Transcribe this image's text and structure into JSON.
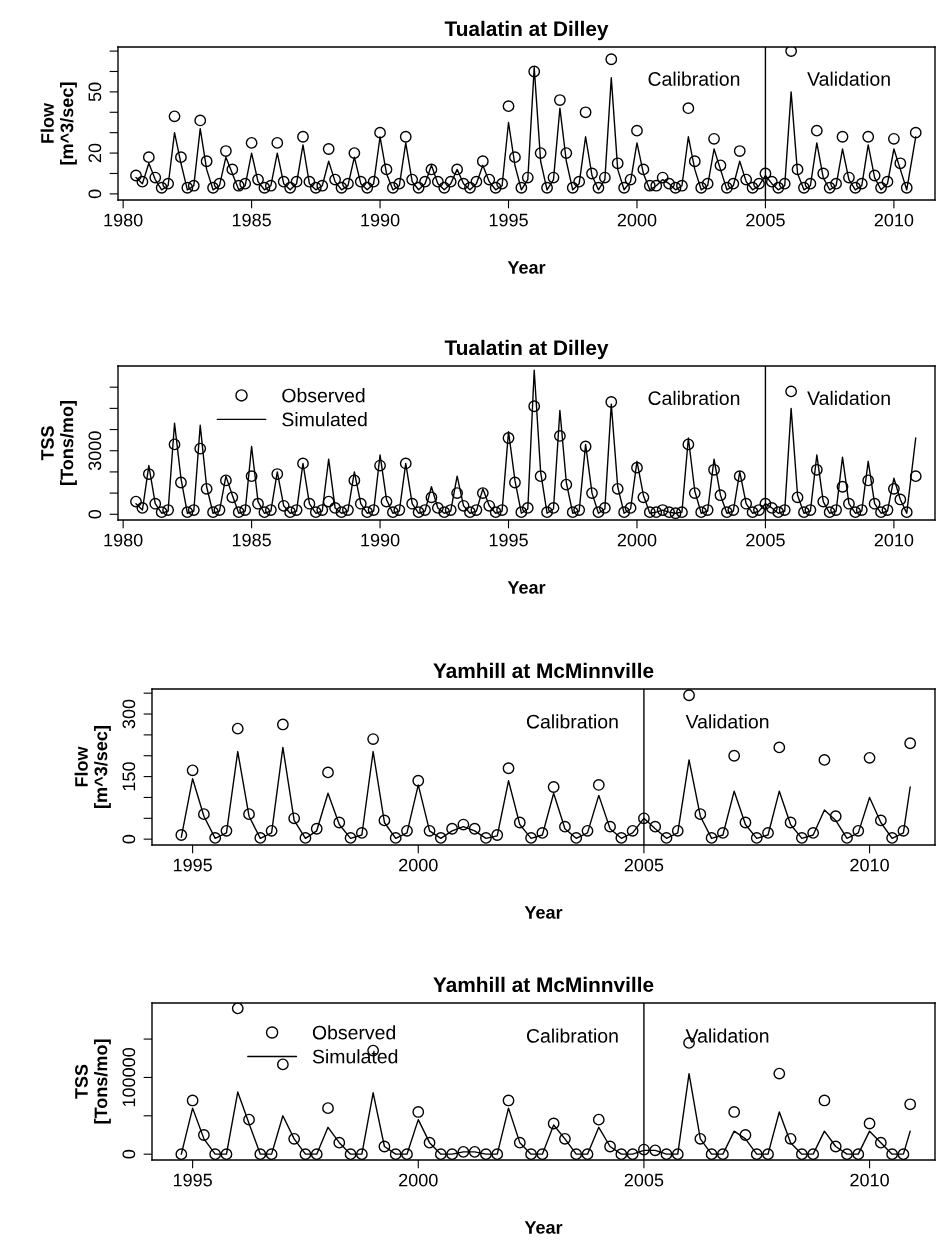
{
  "chart_data": [
    {
      "type": "line",
      "title": "Tualatin at Dilley",
      "xlabel": "Year",
      "ylabel": "Flow\n[m^3/sec]",
      "x": [
        1980.5,
        1980.75,
        1981,
        1981.25,
        1981.5,
        1981.75,
        1982,
        1982.25,
        1982.5,
        1982.75,
        1983,
        1983.25,
        1983.5,
        1983.75,
        1984,
        1984.25,
        1984.5,
        1984.75,
        1985,
        1985.25,
        1985.5,
        1985.75,
        1986,
        1986.25,
        1986.5,
        1986.75,
        1987,
        1987.25,
        1987.5,
        1987.75,
        1988,
        1988.25,
        1988.5,
        1988.75,
        1989,
        1989.25,
        1989.5,
        1989.75,
        1990,
        1990.25,
        1990.5,
        1990.75,
        1991,
        1991.25,
        1991.5,
        1991.75,
        1992,
        1992.25,
        1992.5,
        1992.75,
        1993,
        1993.25,
        1993.5,
        1993.75,
        1994,
        1994.25,
        1994.5,
        1994.75,
        1995,
        1995.25,
        1995.5,
        1995.75,
        1996,
        1996.25,
        1996.5,
        1996.75,
        1997,
        1997.25,
        1997.5,
        1997.75,
        1998,
        1998.25,
        1998.5,
        1998.75,
        1999,
        1999.25,
        1999.5,
        1999.75,
        2000,
        2000.25,
        2000.5,
        2000.75,
        2001,
        2001.25,
        2001.5,
        2001.75,
        2002,
        2002.25,
        2002.5,
        2002.75,
        2003,
        2003.25,
        2003.5,
        2003.75,
        2004,
        2004.25,
        2004.5,
        2004.75,
        2005,
        2005.25,
        2005.5,
        2005.75,
        2006,
        2006.25,
        2006.5,
        2006.75,
        2007,
        2007.25,
        2007.5,
        2007.75,
        2008,
        2008.25,
        2008.5,
        2008.75,
        2009,
        2009.25,
        2009.5,
        2009.75,
        2010,
        2010.25,
        2010.5,
        2010.85
      ],
      "series": [
        {
          "type": "scatter",
          "marker": "circle",
          "color": "#000000",
          "values": [
            9,
            6,
            18,
            8,
            3,
            5,
            38,
            18,
            3,
            4,
            36,
            16,
            3,
            5,
            21,
            12,
            4,
            5,
            25,
            7,
            3,
            4,
            25,
            6,
            3,
            6,
            28,
            6,
            3,
            4,
            22,
            7,
            3,
            5,
            20,
            6,
            3,
            6,
            30,
            12,
            3,
            5,
            28,
            7,
            3,
            6,
            12,
            6,
            3,
            6,
            12,
            5,
            3,
            6,
            16,
            7,
            3,
            5,
            43,
            18,
            3,
            8,
            60,
            20,
            3,
            8,
            46,
            20,
            3,
            6,
            40,
            10,
            3,
            8,
            66,
            15,
            3,
            7,
            31,
            12,
            4,
            4,
            8,
            5,
            3,
            4,
            42,
            16,
            3,
            5,
            27,
            14,
            3,
            5,
            21,
            7,
            3,
            5,
            10,
            6,
            3,
            5,
            70,
            12,
            3,
            5,
            31,
            10,
            3,
            5,
            28,
            8,
            3,
            5,
            28,
            9,
            3,
            6,
            27,
            15,
            3,
            30
          ]
        },
        {
          "type": "line",
          "line_style": "solid",
          "color": "#000000",
          "values": [
            8,
            5,
            15,
            7,
            2,
            4,
            30,
            15,
            2,
            4,
            32,
            12,
            2,
            4,
            18,
            10,
            2,
            4,
            20,
            6,
            2,
            4,
            20,
            5,
            2,
            5,
            24,
            5,
            2,
            4,
            16,
            6,
            2,
            4,
            18,
            5,
            2,
            5,
            28,
            10,
            2,
            4,
            25,
            6,
            2,
            5,
            14,
            5,
            2,
            5,
            12,
            5,
            2,
            5,
            14,
            6,
            2,
            4,
            35,
            14,
            2,
            7,
            62,
            16,
            2,
            7,
            42,
            16,
            2,
            5,
            28,
            9,
            2,
            7,
            57,
            12,
            2,
            6,
            25,
            10,
            2,
            4,
            7,
            5,
            2,
            4,
            28,
            12,
            2,
            4,
            22,
            12,
            2,
            4,
            16,
            6,
            2,
            4,
            9,
            5,
            2,
            4,
            50,
            10,
            2,
            4,
            25,
            8,
            2,
            4,
            22,
            7,
            2,
            4,
            24,
            8,
            2,
            5,
            22,
            12,
            2,
            28
          ]
        }
      ],
      "xlim": [
        1979.8,
        2011.6
      ],
      "xticks": [
        1980,
        1985,
        1990,
        1995,
        2000,
        2005,
        2010
      ],
      "ylim": [
        -3,
        72
      ],
      "yticks": [
        0,
        {
          "value": 10,
          "label": null
        },
        20,
        {
          "value": 30,
          "label": null
        },
        {
          "value": 40,
          "label": null
        },
        50,
        {
          "value": 60,
          "label": null
        },
        {
          "value": 70,
          "label": null
        }
      ],
      "ref_lines": [
        {
          "axis": "x",
          "value": 2005,
          "color": "#000000"
        }
      ],
      "annotations": [
        "Calibration",
        "Validation"
      ],
      "grid": false,
      "legend": false
    },
    {
      "type": "line",
      "title": "Tualatin at Dilley",
      "xlabel": "Year",
      "ylabel": "TSS\n[Tons/mo]",
      "x": [
        1980.5,
        1980.75,
        1981,
        1981.25,
        1981.5,
        1981.75,
        1982,
        1982.25,
        1982.5,
        1982.75,
        1983,
        1983.25,
        1983.5,
        1983.75,
        1984,
        1984.25,
        1984.5,
        1984.75,
        1985,
        1985.25,
        1985.5,
        1985.75,
        1986,
        1986.25,
        1986.5,
        1986.75,
        1987,
        1987.25,
        1987.5,
        1987.75,
        1988,
        1988.25,
        1988.5,
        1988.75,
        1989,
        1989.25,
        1989.5,
        1989.75,
        1990,
        1990.25,
        1990.5,
        1990.75,
        1991,
        1991.25,
        1991.5,
        1991.75,
        1992,
        1992.25,
        1992.5,
        1992.75,
        1993,
        1993.25,
        1993.5,
        1993.75,
        1994,
        1994.25,
        1994.5,
        1994.75,
        1995,
        1995.25,
        1995.5,
        1995.75,
        1996,
        1996.25,
        1996.5,
        1996.75,
        1997,
        1997.25,
        1997.5,
        1997.75,
        1998,
        1998.25,
        1998.5,
        1998.75,
        1999,
        1999.25,
        1999.5,
        1999.75,
        2000,
        2000.25,
        2000.5,
        2000.75,
        2001,
        2001.25,
        2001.5,
        2001.75,
        2002,
        2002.25,
        2002.5,
        2002.75,
        2003,
        2003.25,
        2003.5,
        2003.75,
        2004,
        2004.25,
        2004.5,
        2004.75,
        2005,
        2005.25,
        2005.5,
        2005.75,
        2006,
        2006.25,
        2006.5,
        2006.75,
        2007,
        2007.25,
        2007.5,
        2007.75,
        2008,
        2008.25,
        2008.5,
        2008.75,
        2009,
        2009.25,
        2009.5,
        2009.75,
        2010,
        2010.25,
        2010.5,
        2010.85
      ],
      "series": [
        {
          "name": "Observed",
          "type": "scatter",
          "marker": "circle",
          "color": "#000000",
          "values": [
            600,
            300,
            1900,
            500,
            100,
            200,
            3300,
            1500,
            100,
            200,
            3100,
            1200,
            100,
            200,
            1600,
            800,
            100,
            200,
            1800,
            500,
            100,
            200,
            1900,
            400,
            100,
            200,
            2400,
            500,
            100,
            200,
            600,
            300,
            100,
            200,
            1600,
            500,
            100,
            200,
            2300,
            600,
            100,
            200,
            2400,
            500,
            100,
            200,
            800,
            300,
            100,
            200,
            1000,
            400,
            100,
            200,
            1000,
            400,
            100,
            200,
            3600,
            1500,
            100,
            300,
            5100,
            1800,
            100,
            300,
            3700,
            1400,
            100,
            200,
            3200,
            1000,
            100,
            300,
            5300,
            1200,
            100,
            300,
            2200,
            800,
            100,
            100,
            200,
            100,
            50,
            100,
            3300,
            1000,
            100,
            200,
            2100,
            900,
            100,
            200,
            1800,
            500,
            100,
            200,
            500,
            300,
            100,
            200,
            5800,
            800,
            100,
            200,
            2100,
            600,
            100,
            200,
            1300,
            500,
            100,
            200,
            1600,
            500,
            100,
            200,
            1200,
            700,
            100,
            1800
          ]
        },
        {
          "name": "Simulated",
          "type": "line",
          "line_style": "solid",
          "color": "#000000",
          "values": [
            500,
            200,
            2300,
            500,
            50,
            150,
            4300,
            1700,
            50,
            150,
            4200,
            1300,
            50,
            150,
            1800,
            900,
            50,
            150,
            3200,
            600,
            50,
            150,
            2000,
            400,
            50,
            150,
            2400,
            500,
            50,
            150,
            2600,
            300,
            50,
            150,
            2000,
            500,
            50,
            150,
            2800,
            700,
            50,
            150,
            2400,
            500,
            50,
            150,
            1300,
            300,
            50,
            150,
            1800,
            400,
            50,
            150,
            1200,
            400,
            50,
            150,
            3900,
            1600,
            50,
            250,
            6800,
            2000,
            50,
            250,
            4900,
            1500,
            50,
            150,
            3300,
            1000,
            50,
            250,
            5200,
            1300,
            50,
            250,
            2500,
            900,
            50,
            100,
            200,
            100,
            50,
            100,
            3600,
            1100,
            50,
            150,
            2600,
            900,
            50,
            150,
            2000,
            500,
            50,
            150,
            500,
            300,
            50,
            150,
            5000,
            900,
            50,
            150,
            2800,
            600,
            50,
            150,
            2700,
            500,
            50,
            150,
            2500,
            500,
            50,
            150,
            1700,
            700,
            50,
            3600
          ]
        }
      ],
      "xlim": [
        1979.8,
        2011.6
      ],
      "xticks": [
        1980,
        1985,
        1990,
        1995,
        2000,
        2005,
        2010
      ],
      "ylim": [
        -270,
        7000
      ],
      "yticks": [
        0,
        {
          "value": 1000,
          "label": null
        },
        {
          "value": 2000,
          "label": null
        },
        3000,
        {
          "value": 4000,
          "label": null
        },
        {
          "value": 5000,
          "label": null
        },
        {
          "value": 6000,
          "label": null
        }
      ],
      "ref_lines": [
        {
          "axis": "x",
          "value": 2005,
          "color": "#000000"
        }
      ],
      "annotations": [
        "Calibration",
        "Validation"
      ],
      "grid": false,
      "legend": "top left"
    },
    {
      "type": "line",
      "title": "Yamhill at McMinnville",
      "xlabel": "Year",
      "ylabel": "Flow\n[m^3/sec]",
      "x": [
        1994.75,
        1995,
        1995.25,
        1995.5,
        1995.75,
        1996,
        1996.25,
        1996.5,
        1996.75,
        1997,
        1997.25,
        1997.5,
        1997.75,
        1998,
        1998.25,
        1998.5,
        1998.75,
        1999,
        1999.25,
        1999.5,
        1999.75,
        2000,
        2000.25,
        2000.5,
        2000.75,
        2001,
        2001.25,
        2001.5,
        2001.75,
        2002,
        2002.25,
        2002.5,
        2002.75,
        2003,
        2003.25,
        2003.5,
        2003.75,
        2004,
        2004.25,
        2004.5,
        2004.75,
        2005,
        2005.25,
        2005.5,
        2005.75,
        2006,
        2006.25,
        2006.5,
        2006.75,
        2007,
        2007.25,
        2007.5,
        2007.75,
        2008,
        2008.25,
        2008.5,
        2008.75,
        2009,
        2009.25,
        2009.5,
        2009.75,
        2010,
        2010.25,
        2010.5,
        2010.75,
        2010.9
      ],
      "series": [
        {
          "type": "scatter",
          "marker": "circle",
          "color": "#000000",
          "values": [
            10,
            165,
            60,
            3,
            20,
            265,
            60,
            3,
            20,
            275,
            50,
            3,
            25,
            160,
            40,
            3,
            15,
            240,
            45,
            3,
            20,
            140,
            20,
            3,
            25,
            35,
            25,
            3,
            10,
            170,
            40,
            3,
            15,
            125,
            30,
            3,
            20,
            130,
            30,
            3,
            20,
            50,
            30,
            3,
            20,
            345,
            60,
            3,
            15,
            200,
            40,
            3,
            15,
            220,
            40,
            3,
            15,
            190,
            55,
            3,
            20,
            195,
            45,
            3,
            20,
            230
          ]
        },
        {
          "type": "line",
          "line_style": "solid",
          "color": "#000000",
          "values": [
            5,
            145,
            55,
            2,
            15,
            210,
            55,
            2,
            15,
            220,
            45,
            2,
            20,
            110,
            35,
            2,
            10,
            210,
            40,
            2,
            15,
            130,
            20,
            2,
            20,
            30,
            20,
            2,
            8,
            140,
            35,
            2,
            10,
            110,
            25,
            2,
            15,
            105,
            25,
            2,
            15,
            50,
            25,
            2,
            15,
            190,
            55,
            2,
            10,
            115,
            35,
            2,
            10,
            115,
            35,
            2,
            10,
            70,
            45,
            2,
            15,
            100,
            40,
            2,
            15,
            125
          ]
        }
      ],
      "xlim": [
        1994.1,
        2011.45
      ],
      "xticks": [
        1995,
        2000,
        2005,
        2010
      ],
      "ylim": [
        -14,
        360
      ],
      "yticks": [
        0,
        {
          "value": 50,
          "label": null
        },
        {
          "value": 100,
          "label": null
        },
        150,
        {
          "value": 200,
          "label": null
        },
        {
          "value": 250,
          "label": null
        },
        300,
        {
          "value": 350,
          "label": null
        }
      ],
      "ref_lines": [
        {
          "axis": "x",
          "value": 2005,
          "color": "#000000"
        }
      ],
      "annotations": [
        "Calibration",
        "Validation"
      ],
      "grid": false,
      "legend": false
    },
    {
      "type": "line",
      "title": "Yamhill at McMinnville",
      "xlabel": "Year",
      "ylabel": "TSS\n[Tons/mo]",
      "x": [
        1994.75,
        1995,
        1995.25,
        1995.5,
        1995.75,
        1996,
        1996.25,
        1996.5,
        1996.75,
        1997,
        1997.25,
        1997.5,
        1997.75,
        1998,
        1998.25,
        1998.5,
        1998.75,
        1999,
        1999.25,
        1999.5,
        1999.75,
        2000,
        2000.25,
        2000.5,
        2000.75,
        2001,
        2001.25,
        2001.5,
        2001.75,
        2002,
        2002.25,
        2002.5,
        2002.75,
        2003,
        2003.25,
        2003.5,
        2003.75,
        2004,
        2004.25,
        2004.5,
        2004.75,
        2005,
        2005.25,
        2005.5,
        2005.75,
        2006,
        2006.25,
        2006.5,
        2006.75,
        2007,
        2007.25,
        2007.5,
        2007.75,
        2008,
        2008.25,
        2008.5,
        2008.75,
        2009,
        2009.25,
        2009.5,
        2009.75,
        2010,
        2010.25,
        2010.5,
        2010.75,
        2010.9
      ],
      "series": [
        {
          "name": "Observed",
          "type": "scatter",
          "marker": "circle",
          "color": "#000000",
          "values": [
            0,
            70000,
            25000,
            0,
            0,
            190000,
            45000,
            0,
            0,
            117000,
            20000,
            0,
            0,
            60000,
            15000,
            0,
            0,
            135000,
            10000,
            0,
            0,
            55000,
            15000,
            0,
            0,
            3000,
            3000,
            0,
            0,
            70000,
            15000,
            0,
            0,
            40000,
            20000,
            0,
            0,
            45000,
            10000,
            0,
            0,
            6000,
            5000,
            0,
            0,
            145000,
            20000,
            0,
            0,
            55000,
            25000,
            0,
            0,
            105000,
            20000,
            0,
            0,
            70000,
            10000,
            0,
            0,
            40000,
            15000,
            0,
            0,
            65000
          ]
        },
        {
          "name": "Simulated",
          "type": "line",
          "line_style": "solid",
          "color": "#000000",
          "values": [
            0,
            60000,
            20000,
            0,
            0,
            81000,
            40000,
            0,
            0,
            50000,
            20000,
            0,
            0,
            35000,
            15000,
            0,
            0,
            80000,
            10000,
            0,
            0,
            45000,
            15000,
            0,
            0,
            3000,
            3000,
            0,
            0,
            60000,
            15000,
            0,
            0,
            38000,
            20000,
            0,
            0,
            35000,
            10000,
            0,
            0,
            5000,
            5000,
            0,
            0,
            105000,
            20000,
            0,
            0,
            30000,
            20000,
            0,
            0,
            55000,
            15000,
            0,
            0,
            30000,
            10000,
            0,
            0,
            30000,
            15000,
            0,
            0,
            30000
          ]
        }
      ],
      "xlim": [
        1994.1,
        2011.45
      ],
      "xticks": [
        1995,
        2000,
        2005,
        2010
      ],
      "ylim": [
        -7600,
        197000
      ],
      "yticks": [
        0,
        {
          "value": 50000,
          "label": null
        },
        100000,
        {
          "value": 150000,
          "label": null
        }
      ],
      "ref_lines": [
        {
          "axis": "x",
          "value": 2005,
          "color": "#000000"
        }
      ],
      "annotations": [
        "Calibration",
        "Validation"
      ],
      "grid": false,
      "legend": "top left"
    }
  ]
}
